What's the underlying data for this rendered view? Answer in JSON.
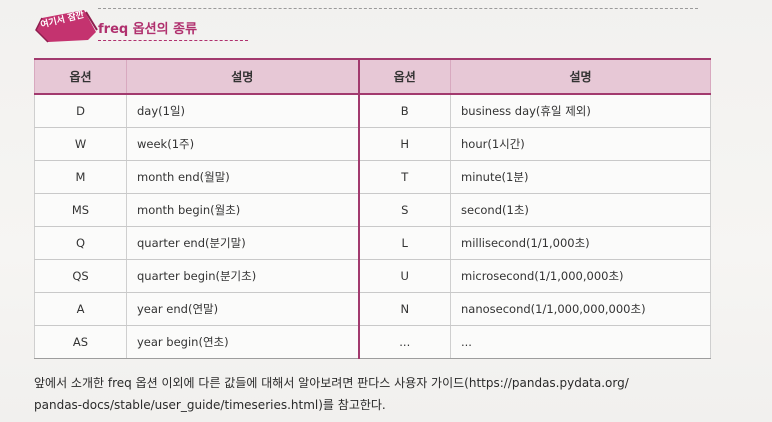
{
  "header": {
    "badge_label": "여기서 잠깐",
    "title": "freq 옵션의 종류"
  },
  "table": {
    "columns": [
      "옵션",
      "설명",
      "옵션",
      "설명"
    ],
    "rows": [
      {
        "left_opt": "D",
        "left_desc": "day(1일)",
        "right_opt": "B",
        "right_desc": "business day(휴일 제외)"
      },
      {
        "left_opt": "W",
        "left_desc": "week(1주)",
        "right_opt": "H",
        "right_desc": "hour(1시간)"
      },
      {
        "left_opt": "M",
        "left_desc": "month end(월말)",
        "right_opt": "T",
        "right_desc": "minute(1분)"
      },
      {
        "left_opt": "MS",
        "left_desc": "month begin(월초)",
        "right_opt": "S",
        "right_desc": "second(1초)"
      },
      {
        "left_opt": "Q",
        "left_desc": "quarter end(분기말)",
        "right_opt": "L",
        "right_desc": "millisecond(1/1,000초)"
      },
      {
        "left_opt": "QS",
        "left_desc": "quarter begin(분기초)",
        "right_opt": "U",
        "right_desc": "microsecond(1/1,000,000초)"
      },
      {
        "left_opt": "A",
        "left_desc": "year end(연말)",
        "right_opt": "N",
        "right_desc": "nanosecond(1/1,000,000,000초)"
      },
      {
        "left_opt": "AS",
        "left_desc": "year begin(연초)",
        "right_opt": "...",
        "right_desc": "..."
      }
    ]
  },
  "note": {
    "line1": "앞에서 소개한 freq 옵션 이외에 다른 값들에 대해서 알아보려면 판다스 사용자 가이드(https://pandas.pydata.org/",
    "line2": "pandas-docs/stable/user_guide/timeseries.html)를 참고한다."
  },
  "colors": {
    "accent": "#b0306e",
    "header_bg": "#e7c8d6",
    "badge": "#c4336f"
  }
}
